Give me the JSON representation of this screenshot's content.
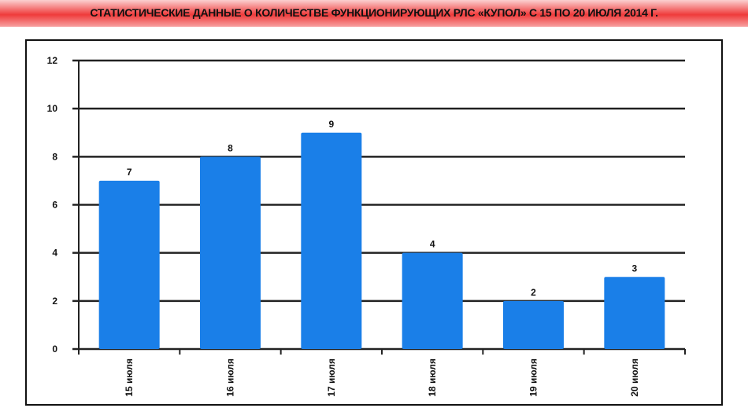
{
  "chart_data": {
    "type": "bar",
    "title": "СТАТИСТИЧЕСКИЕ ДАННЫЕ О КОЛИЧЕСТВЕ ФУНКЦИОНИРУЮЩИХ РЛС «КУПОЛ» С 15 ПО 20 ИЮЛЯ 2014 Г.",
    "categories": [
      "15 июля",
      "16 июля",
      "17 июля",
      "18 июля",
      "19 июля",
      "20 июля"
    ],
    "values": [
      7,
      8,
      9,
      4,
      2,
      3
    ],
    "color": "#1a7fe8",
    "ylim": [
      0,
      12
    ],
    "yticks": [
      0,
      2,
      4,
      6,
      8,
      10,
      12
    ],
    "grid": true
  }
}
